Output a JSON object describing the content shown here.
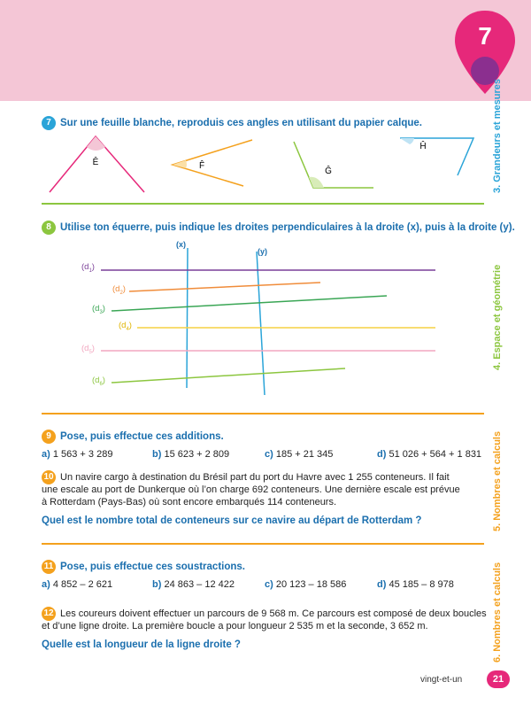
{
  "chapter": {
    "number": "7"
  },
  "side_labels": {
    "grandeurs": "3. Grandeurs et mesures",
    "espace": "4. Espace et géométrie",
    "nombres5": "5. Nombres et calculs",
    "nombres6": "6. Nombres et calculs"
  },
  "ex7": {
    "num": "7",
    "title": "Sur une feuille blanche, reproduis ces angles en utilisant du papier calque.",
    "angles": [
      "Ê",
      "F̂",
      "Ĝ",
      "Ĥ"
    ]
  },
  "ex8": {
    "num": "8",
    "title": "Utilise ton équerre, puis indique les droites perpendiculaires à la droite (x), puis à la droite (y).",
    "axis_x": "(x)",
    "axis_y": "(y)",
    "lines": [
      {
        "label": "(d",
        "sub": "1",
        "color": "#7a3f98"
      },
      {
        "label": "(d",
        "sub": "2",
        "color": "#f08c3a"
      },
      {
        "label": "(d",
        "sub": "3",
        "color": "#3aa655"
      },
      {
        "label": "(d",
        "sub": "4",
        "color": "#f5d142"
      },
      {
        "label": "(d",
        "sub": "5",
        "color": "#f2a7c0"
      },
      {
        "label": "(d",
        "sub": "6",
        "color": "#8cc63f"
      }
    ]
  },
  "ex9": {
    "num": "9",
    "title": "Pose, puis effectue ces additions.",
    "ops": [
      {
        "letter": "a)",
        "expr": "1 563 + 3 289"
      },
      {
        "letter": "b)",
        "expr": "15 623 + 2 809"
      },
      {
        "letter": "c)",
        "expr": "185 + 21 345"
      },
      {
        "letter": "d)",
        "expr": "51 026 + 564 + 1 831"
      }
    ]
  },
  "ex10": {
    "num": "10",
    "line1": "Un navire cargo à destination du Brésil part du port du Havre avec 1 255 conteneurs. Il fait",
    "line2": "une escale au port de Dunkerque où l’on charge 692 conteneurs. Une dernière escale est prévue",
    "line3": "à Rotterdam (Pays-Bas) où sont encore embarqués 114 conteneurs.",
    "question": "Quel est le nombre total de conteneurs sur ce navire au départ de Rotterdam ?"
  },
  "ex11": {
    "num": "11",
    "title": "Pose, puis effectue ces soustractions.",
    "ops": [
      {
        "letter": "a)",
        "expr": "4 852 – 2 621"
      },
      {
        "letter": "b)",
        "expr": "24 863 – 12 422"
      },
      {
        "letter": "c)",
        "expr": "20 123 – 18 586"
      },
      {
        "letter": "d)",
        "expr": "45 185 – 8 978"
      }
    ]
  },
  "ex12": {
    "num": "12",
    "line1": "Les coureurs doivent effectuer un parcours de 9 568 m. Ce parcours est composé de deux boucles",
    "line2": "et d’une ligne droite. La première boucle a pour longueur 2 535 m et la seconde, 3 652 m.",
    "question": "Quelle est la longueur de la ligne droite ?"
  },
  "footer": {
    "text": "vingt-et-un",
    "page": "21"
  }
}
